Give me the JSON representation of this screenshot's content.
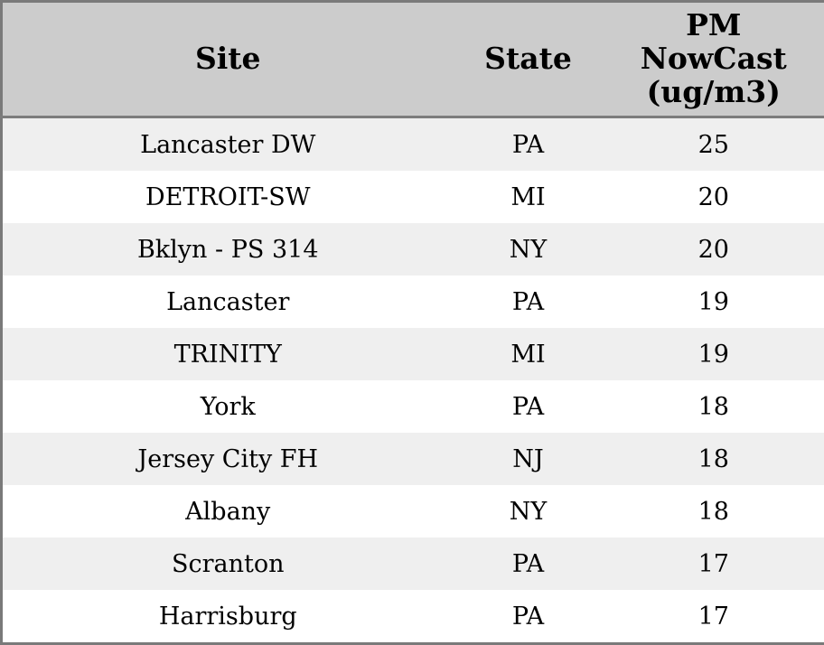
{
  "table": {
    "columns": [
      {
        "key": "site",
        "label": "Site"
      },
      {
        "key": "state",
        "label": "State"
      },
      {
        "key": "pm",
        "label": "PM NowCast (ug/m3)"
      }
    ],
    "rows": [
      {
        "site": "Lancaster DW",
        "state": "PA",
        "pm": "25"
      },
      {
        "site": "DETROIT-SW",
        "state": "MI",
        "pm": "20"
      },
      {
        "site": "Bklyn - PS 314",
        "state": "NY",
        "pm": "20"
      },
      {
        "site": "Lancaster",
        "state": "PA",
        "pm": "19"
      },
      {
        "site": "TRINITY",
        "state": "MI",
        "pm": "19"
      },
      {
        "site": "York",
        "state": "PA",
        "pm": "18"
      },
      {
        "site": "Jersey City FH",
        "state": "NJ",
        "pm": "18"
      },
      {
        "site": "Albany",
        "state": "NY",
        "pm": "18"
      },
      {
        "site": "Scranton",
        "state": "PA",
        "pm": "17"
      },
      {
        "site": "Harrisburg",
        "state": "PA",
        "pm": "17"
      }
    ]
  },
  "colors": {
    "header_bg": "#cccccc",
    "row_alt_bg": "#efefef",
    "row_bg": "#ffffff",
    "outer_border": "#7a7a7a",
    "header_separator": "#7d7d7d",
    "text": "#000000"
  }
}
